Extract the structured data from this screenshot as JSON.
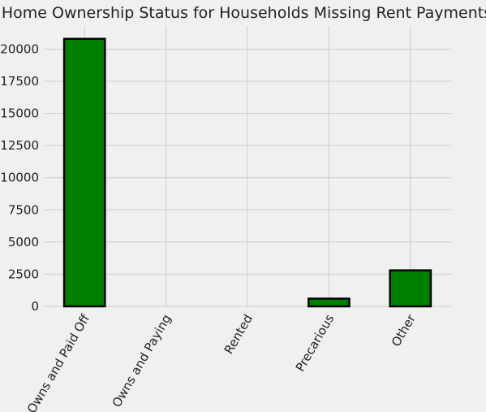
{
  "chart_data": {
    "type": "bar",
    "title": "Home Ownership Status for Households Missing Rent Payments",
    "xlabel": "",
    "ylabel": "",
    "categories": [
      "Owns and Paid Off",
      "Owns and Paying",
      "Rented",
      "Precarious",
      "Other"
    ],
    "values": [
      20800,
      0,
      0,
      600,
      2800
    ],
    "ylim": [
      0,
      21800
    ],
    "yticks": [
      0,
      2500,
      5000,
      7500,
      10000,
      12500,
      15000,
      17500,
      20000
    ],
    "grid": true,
    "legend": "none",
    "colors": {
      "bar_fill": "#008000",
      "bar_edge": "#000000",
      "background": "#f0f0f0",
      "grid": "#cbcbcb"
    }
  }
}
